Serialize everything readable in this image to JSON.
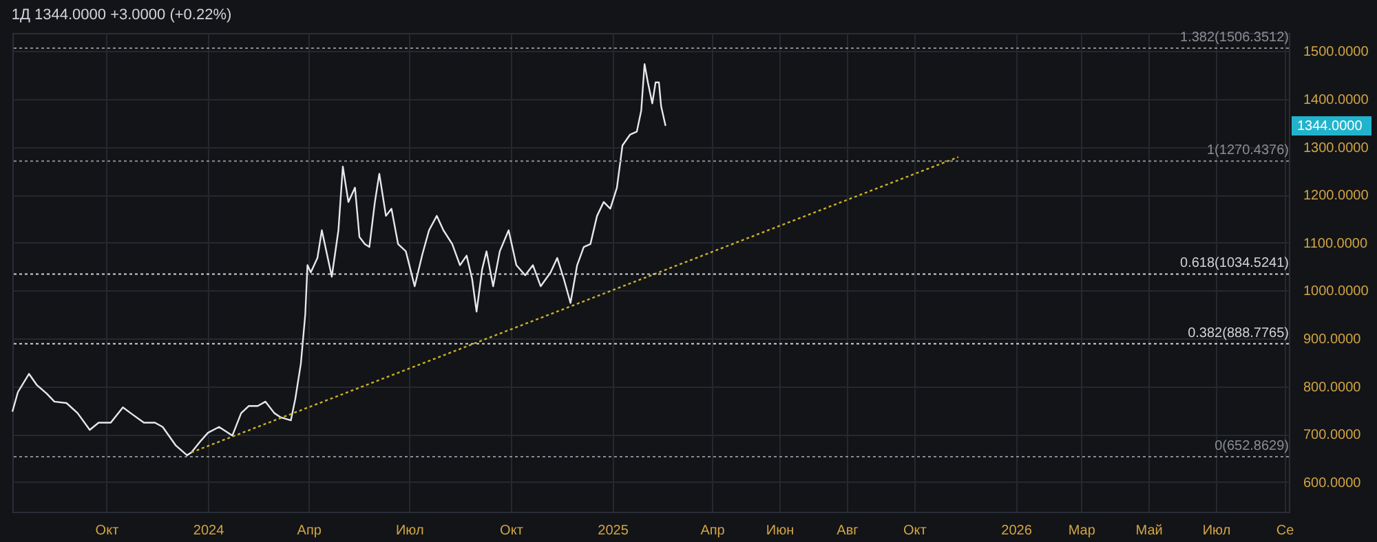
{
  "chart_data": {
    "type": "line",
    "title": "1Д  1344.0000  +3.0000 (+0.22%)",
    "xlim": [
      "2023-07-08",
      "2026-09-05"
    ],
    "xticks": [
      {
        "value": "2023-10-01",
        "label": "Окт"
      },
      {
        "value": "2024-01-01",
        "label": "2024"
      },
      {
        "value": "2024-04-01",
        "label": "Апр"
      },
      {
        "value": "2024-07-01",
        "label": "Июл"
      },
      {
        "value": "2024-10-01",
        "label": "Окт"
      },
      {
        "value": "2025-01-01",
        "label": "2025"
      },
      {
        "value": "2025-04-01",
        "label": "Апр"
      },
      {
        "value": "2025-06-01",
        "label": "Июн"
      },
      {
        "value": "2025-08-01",
        "label": "Авг"
      },
      {
        "value": "2025-10-01",
        "label": "Окт"
      },
      {
        "value": "2026-01-01",
        "label": "2026"
      },
      {
        "value": "2026-03-01",
        "label": "Мар"
      },
      {
        "value": "2026-05-01",
        "label": "Май"
      },
      {
        "value": "2026-07-01",
        "label": "Июл"
      },
      {
        "value": "2026-09-01",
        "label": "Се"
      }
    ],
    "ylim": [
      538,
      1538
    ],
    "yticks": [
      {
        "value": 600,
        "label": "600.0000"
      },
      {
        "value": 700,
        "label": "700.0000"
      },
      {
        "value": 800,
        "label": "800.0000"
      },
      {
        "value": 900,
        "label": "900.0000"
      },
      {
        "value": 1000,
        "label": "1000.0000"
      },
      {
        "value": 1100,
        "label": "1100.0000"
      },
      {
        "value": 1200,
        "label": "1200.0000"
      },
      {
        "value": 1300,
        "label": "1300.0000"
      },
      {
        "value": 1400,
        "label": "1400.0000"
      },
      {
        "value": 1500,
        "label": "1500.0000"
      }
    ],
    "grid": true,
    "series": [
      {
        "type": "line",
        "color": "#e6e8ee",
        "x": [
          "2023-07-08",
          "2023-07-13",
          "2023-07-23",
          "2023-07-30",
          "2023-08-08",
          "2023-08-15",
          "2023-08-26",
          "2023-09-05",
          "2023-09-16",
          "2023-09-24",
          "2023-10-05",
          "2023-10-16",
          "2023-10-23",
          "2023-11-04",
          "2023-11-14",
          "2023-11-21",
          "2023-12-03",
          "2023-12-13",
          "2023-12-17",
          "2023-12-25",
          "2024-01-01",
          "2024-01-11",
          "2024-01-23",
          "2024-01-31",
          "2024-02-07",
          "2024-02-15",
          "2024-02-22",
          "2024-03-01",
          "2024-03-07",
          "2024-03-16",
          "2024-03-20",
          "2024-03-25",
          "2024-03-29",
          "2024-03-31",
          "2024-04-03",
          "2024-04-09",
          "2024-04-13",
          "2024-04-22",
          "2024-04-28",
          "2024-05-02",
          "2024-05-07",
          "2024-05-13",
          "2024-05-17",
          "2024-05-22",
          "2024-05-26",
          "2024-05-31",
          "2024-06-04",
          "2024-06-10",
          "2024-06-15",
          "2024-06-21",
          "2024-06-28",
          "2024-07-06",
          "2024-07-13",
          "2024-07-19",
          "2024-07-26",
          "2024-08-01",
          "2024-08-09",
          "2024-08-16",
          "2024-08-22",
          "2024-08-27",
          "2024-08-31",
          "2024-09-05",
          "2024-09-09",
          "2024-09-15",
          "2024-09-21",
          "2024-09-29",
          "2024-10-06",
          "2024-10-14",
          "2024-10-21",
          "2024-10-28",
          "2024-11-06",
          "2024-11-12",
          "2024-11-18",
          "2024-11-24",
          "2024-11-30",
          "2024-12-06",
          "2024-12-12",
          "2024-12-18",
          "2024-12-24",
          "2024-12-30",
          "2025-01-05",
          "2025-01-10",
          "2025-01-17",
          "2025-01-23",
          "2025-01-27",
          "2025-01-30",
          "2025-02-02",
          "2025-02-06",
          "2025-02-09",
          "2025-02-12",
          "2025-02-14",
          "2025-02-18"
        ],
        "values": [
          747,
          788,
          826,
          803,
          785,
          768,
          765,
          744,
          709,
          724,
          724,
          756,
          744,
          724,
          724,
          715,
          676,
          656,
          662,
          685,
          703,
          715,
          697,
          744,
          759,
          759,
          768,
          744,
          735,
          729,
          774,
          847,
          950,
          1053,
          1038,
          1068,
          1126,
          1029,
          1126,
          1259,
          1185,
          1215,
          1112,
          1097,
          1091,
          1185,
          1244,
          1156,
          1171,
          1097,
          1082,
          1009,
          1076,
          1126,
          1156,
          1126,
          1097,
          1053,
          1073,
          1024,
          956,
          1044,
          1082,
          1009,
          1082,
          1126,
          1053,
          1032,
          1053,
          1009,
          1038,
          1068,
          1024,
          974,
          1053,
          1091,
          1097,
          1156,
          1185,
          1171,
          1215,
          1303,
          1326,
          1332,
          1376,
          1473,
          1435,
          1391,
          1435,
          1435,
          1385,
          1344
        ]
      },
      {
        "type": "line",
        "color": "#c9b22a",
        "line_style": "dotted",
        "x": [
          "2023-12-17",
          "2025-11-10"
        ],
        "values": [
          662,
          1279
        ]
      }
    ],
    "ref_lines": [
      {
        "axis": "y",
        "value": 1506.3512,
        "label": "1.382(1506.3512)",
        "color": "#8a8d96",
        "line_style": "dotted"
      },
      {
        "axis": "y",
        "value": 1270.4376,
        "label": "1(1270.4376)",
        "color": "#8a8d96",
        "line_style": "dotted"
      },
      {
        "axis": "y",
        "value": 1034.5241,
        "label": "0.618(1034.5241)",
        "color": "#d0d2d8",
        "line_style": "dotted"
      },
      {
        "axis": "y",
        "value": 888.7765,
        "label": "0.382(888.7765)",
        "color": "#d0d2d8",
        "line_style": "dotted"
      },
      {
        "axis": "y",
        "value": 652.8629,
        "label": "0(652.8629)",
        "color": "#8a8d96",
        "line_style": "dotted"
      }
    ],
    "annotations": [
      "1344.0000"
    ]
  }
}
